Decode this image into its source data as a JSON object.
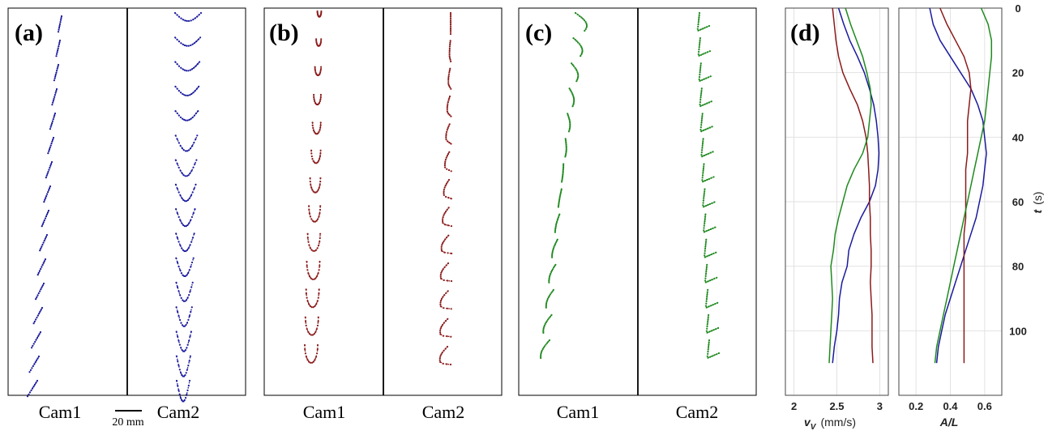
{
  "panels": [
    {
      "label": "(a)",
      "color": "#1a1a9e",
      "cam1": "Cam1",
      "cam2": "Cam2",
      "frames1": 16,
      "frames2": 16
    },
    {
      "label": "(b)",
      "color": "#8b1a1a",
      "cam1": "Cam1",
      "cam2": "Cam2",
      "frames1": 13,
      "frames2": 13
    },
    {
      "label": "(c)",
      "color": "#1f8a1f",
      "cam1": "Cam1",
      "cam2": "Cam2",
      "frames1": 14,
      "frames2": 14
    }
  ],
  "scale_bar": {
    "label": "20 mm"
  },
  "chart_data": [
    {
      "type": "line",
      "label": "(d)",
      "xlabel_main": "v",
      "xlabel_sub": "V",
      "xlabel_units": "(mm/s)",
      "xlim": [
        1.9,
        3.1
      ],
      "xticks": [
        2,
        2.5,
        3
      ],
      "ylim": [
        0,
        120
      ],
      "ylabel": "t",
      "ylabel_units": "(s)",
      "yticks": [
        0,
        20,
        40,
        60,
        80,
        100
      ],
      "series": [
        {
          "color": "#1a1a9e",
          "t": [
            0,
            5,
            10,
            15,
            20,
            25,
            30,
            35,
            40,
            45,
            50,
            55,
            60,
            65,
            70,
            75,
            80,
            85,
            90,
            95,
            100,
            105,
            110
          ],
          "v": [
            2.52,
            2.58,
            2.65,
            2.74,
            2.82,
            2.88,
            2.93,
            2.96,
            2.98,
            2.99,
            2.98,
            2.95,
            2.88,
            2.78,
            2.7,
            2.64,
            2.62,
            2.56,
            2.53,
            2.52,
            2.5,
            2.47,
            2.45
          ]
        },
        {
          "color": "#8b1a1a",
          "t": [
            0,
            5,
            10,
            15,
            20,
            25,
            30,
            35,
            40,
            45,
            50,
            55,
            60,
            65,
            70,
            75,
            80,
            85,
            90,
            95,
            100,
            105,
            110
          ],
          "v": [
            2.45,
            2.47,
            2.49,
            2.52,
            2.57,
            2.65,
            2.74,
            2.8,
            2.84,
            2.86,
            2.87,
            2.88,
            2.88,
            2.89,
            2.89,
            2.9,
            2.9,
            2.89,
            2.9,
            2.91,
            2.91,
            2.91,
            2.92
          ]
        },
        {
          "color": "#1f8a1f",
          "t": [
            0,
            5,
            10,
            15,
            20,
            25,
            30,
            35,
            40,
            45,
            50,
            55,
            60,
            65,
            70,
            75,
            80,
            85,
            90,
            95,
            100,
            105,
            110
          ],
          "v": [
            2.6,
            2.66,
            2.73,
            2.8,
            2.85,
            2.89,
            2.9,
            2.88,
            2.86,
            2.8,
            2.7,
            2.62,
            2.57,
            2.52,
            2.48,
            2.46,
            2.43,
            2.44,
            2.45,
            2.44,
            2.43,
            2.42,
            2.41
          ]
        }
      ]
    },
    {
      "type": "line",
      "xlabel": "A/L",
      "xlim": [
        0.1,
        0.7
      ],
      "xticks": [
        0.2,
        0.4,
        0.6
      ],
      "ylim": [
        0,
        120
      ],
      "yticks": [
        0,
        20,
        40,
        60,
        80,
        100
      ],
      "series": [
        {
          "color": "#1a1a9e",
          "t": [
            0,
            5,
            10,
            15,
            20,
            25,
            30,
            35,
            40,
            45,
            50,
            55,
            60,
            65,
            70,
            75,
            80,
            85,
            90,
            95,
            100,
            105,
            110
          ],
          "a": [
            0.28,
            0.3,
            0.34,
            0.4,
            0.46,
            0.52,
            0.56,
            0.59,
            0.6,
            0.61,
            0.6,
            0.59,
            0.57,
            0.55,
            0.52,
            0.49,
            0.46,
            0.43,
            0.4,
            0.37,
            0.35,
            0.33,
            0.32
          ]
        },
        {
          "color": "#8b1a1a",
          "t": [
            0,
            5,
            10,
            15,
            20,
            25,
            30,
            35,
            40,
            45,
            50,
            55,
            60,
            65,
            70,
            75,
            80,
            85,
            90,
            95,
            100,
            105,
            110
          ],
          "a": [
            0.34,
            0.38,
            0.43,
            0.48,
            0.51,
            0.52,
            0.51,
            0.5,
            0.5,
            0.5,
            0.49,
            0.49,
            0.49,
            0.49,
            0.48,
            0.48,
            0.48,
            0.48,
            0.48,
            0.48,
            0.48,
            0.48,
            0.48
          ]
        },
        {
          "color": "#1f8a1f",
          "t": [
            0,
            5,
            10,
            15,
            20,
            25,
            30,
            35,
            40,
            45,
            50,
            55,
            60,
            65,
            70,
            75,
            80,
            85,
            90,
            95,
            100,
            105,
            110
          ],
          "a": [
            0.58,
            0.62,
            0.64,
            0.64,
            0.63,
            0.62,
            0.61,
            0.6,
            0.58,
            0.56,
            0.54,
            0.52,
            0.5,
            0.48,
            0.46,
            0.44,
            0.42,
            0.4,
            0.38,
            0.36,
            0.34,
            0.32,
            0.31
          ]
        }
      ]
    }
  ]
}
